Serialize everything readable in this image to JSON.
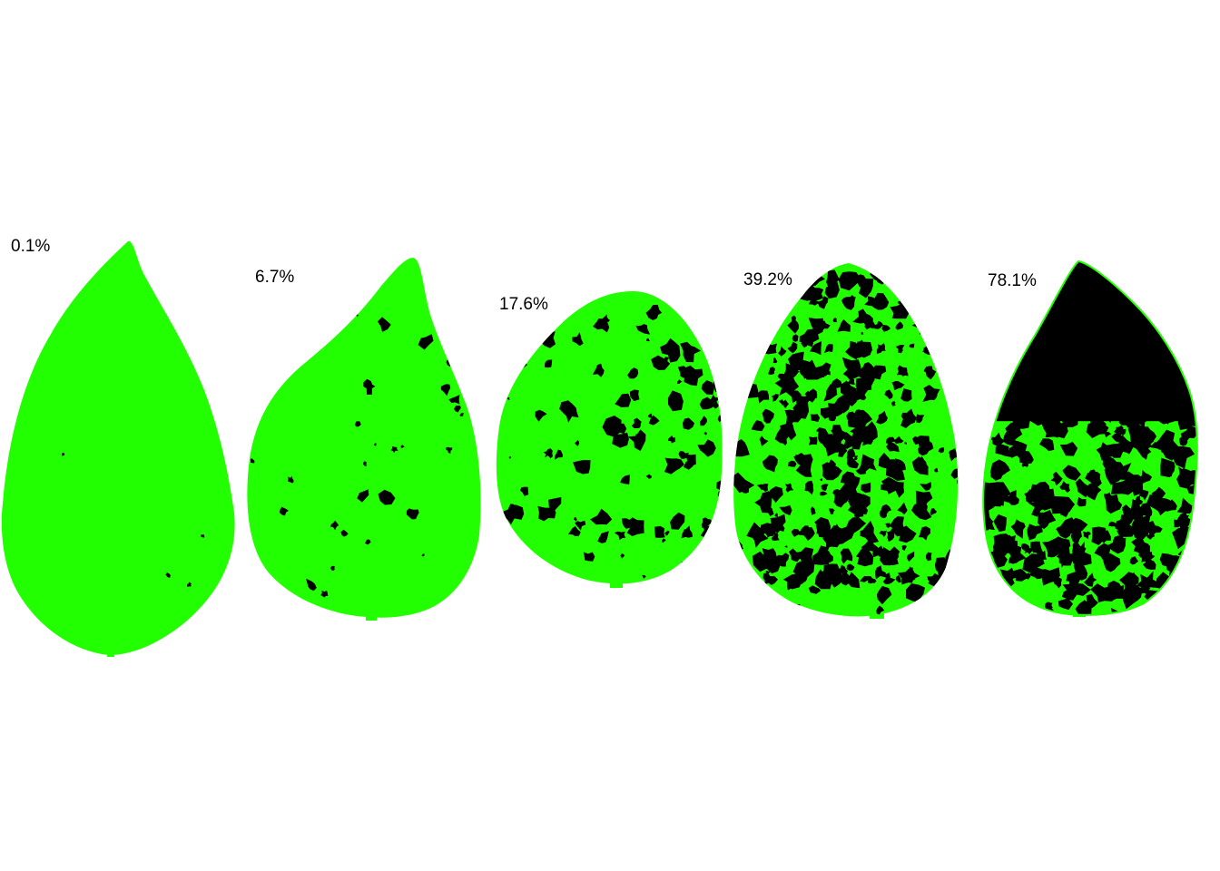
{
  "leaves": [
    {
      "label": "0.1%",
      "severity": 0.001
    },
    {
      "label": "6.7%",
      "severity": 0.067
    },
    {
      "label": "17.6%",
      "severity": 0.176
    },
    {
      "label": "39.2%",
      "severity": 0.392
    },
    {
      "label": "78.1%",
      "severity": 0.781
    }
  ],
  "colors": {
    "healthy": "#22ff00",
    "diseased": "#000000",
    "background": "#ffffff"
  }
}
